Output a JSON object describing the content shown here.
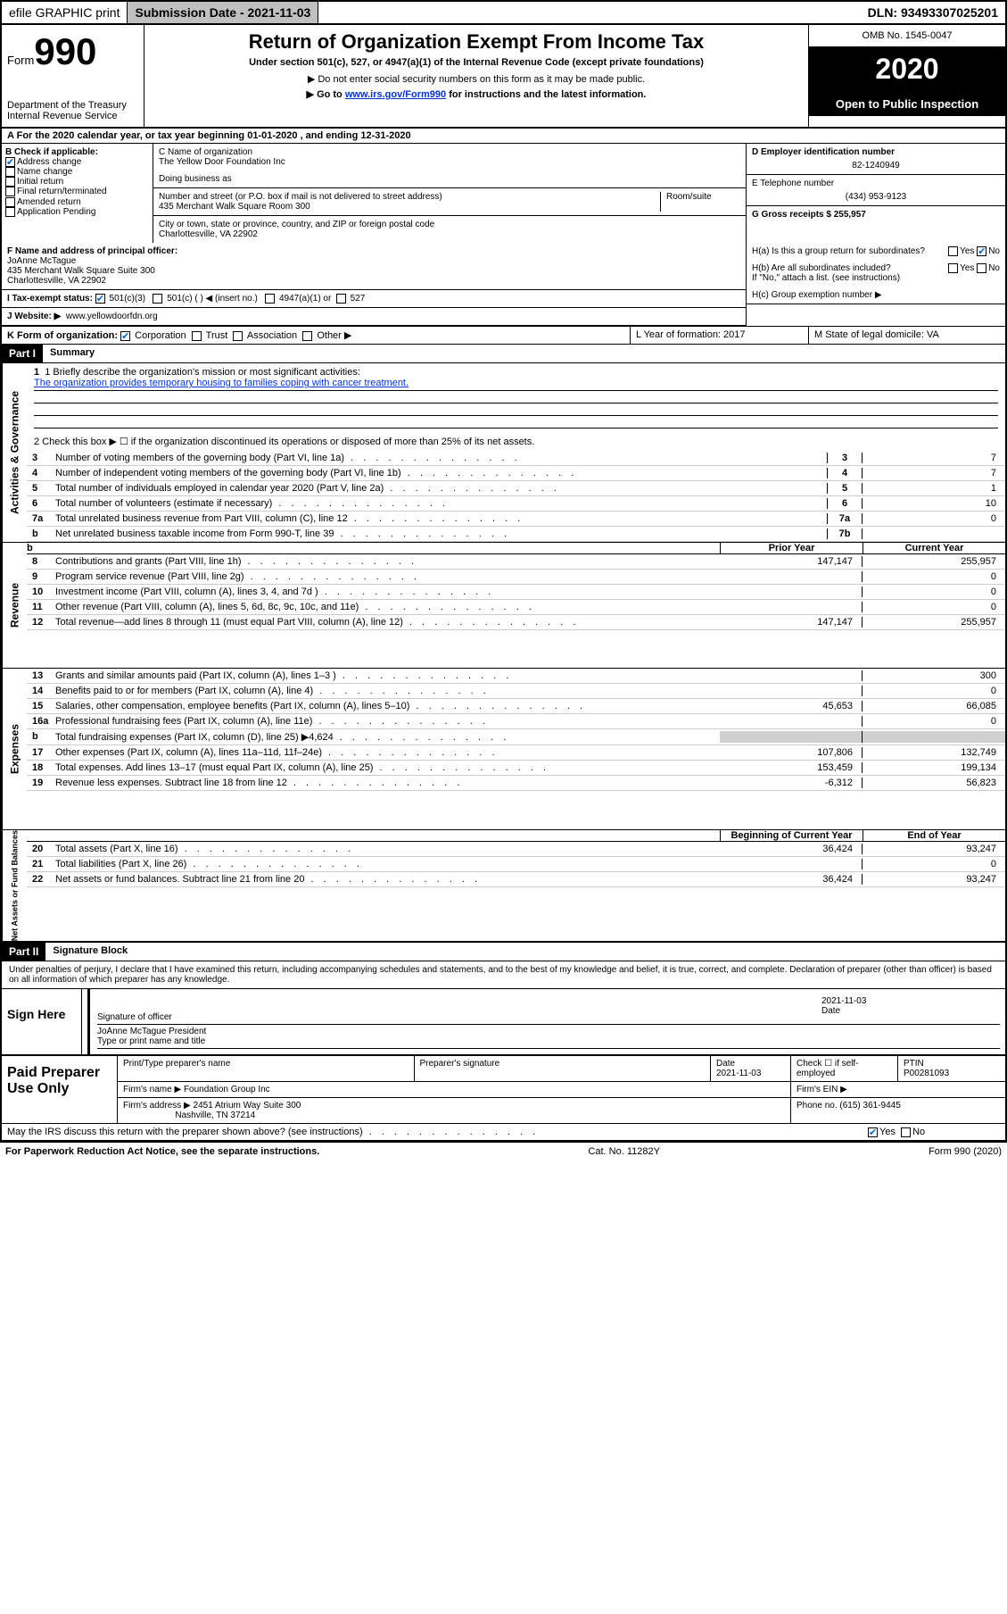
{
  "topbar": {
    "efile": "efile GRAPHIC print",
    "submission_label": "Submission Date - 2021-11-03",
    "dln_label": "DLN: 93493307025201"
  },
  "header": {
    "form_prefix": "Form",
    "form_number": "990",
    "dept": "Department of the Treasury\nInternal Revenue Service",
    "title": "Return of Organization Exempt From Income Tax",
    "subtitle": "Under section 501(c), 527, or 4947(a)(1) of the Internal Revenue Code (except private foundations)",
    "note1": "Do not enter social security numbers on this form as it may be made public.",
    "note2_prefix": "Go to ",
    "note2_link": "www.irs.gov/Form990",
    "note2_suffix": " for instructions and the latest information.",
    "omb": "OMB No. 1545-0047",
    "year": "2020",
    "inspection": "Open to Public Inspection"
  },
  "section_a": "For the 2020 calendar year, or tax year beginning 01-01-2020    , and ending 12-31-2020",
  "check_labels": {
    "b_label": "B Check if applicable:",
    "addr_change": "Address change",
    "name_change": "Name change",
    "initial": "Initial return",
    "final": "Final return/terminated",
    "amended": "Amended return",
    "app_pending": "Application Pending"
  },
  "org": {
    "c_label": "C Name of organization",
    "name": "The Yellow Door Foundation Inc",
    "dba_label": "Doing business as",
    "addr_label": "Number and street (or P.O. box if mail is not delivered to street address)",
    "room_label": "Room/suite",
    "addr": "435 Merchant Walk Square Room 300",
    "city_label": "City or town, state or province, country, and ZIP or foreign postal code",
    "city": "Charlottesville, VA  22902"
  },
  "ein": {
    "label": "D Employer identification number",
    "value": "82-1240949"
  },
  "phone": {
    "label": "E Telephone number",
    "value": "(434) 953-9123"
  },
  "gross": {
    "label": "G Gross receipts $ 255,957"
  },
  "officer": {
    "f_label": "F  Name and address of principal officer:",
    "name": "JoAnne McTague",
    "addr1": "435 Merchant Walk Square Suite 300",
    "addr2": "Charlottesville, VA  22902"
  },
  "h": {
    "a_label": "H(a)  Is this a group return for subordinates?",
    "b_label": "H(b)  Are all subordinates included?",
    "b_note": "If \"No,\" attach a list. (see instructions)",
    "c_label": "H(c)  Group exemption number ▶",
    "yes": "Yes",
    "no": "No"
  },
  "tax_exempt": {
    "i_label": "I  Tax-exempt status:",
    "c3": "501(c)(3)",
    "c": "501(c) (  ) ◀ (insert no.)",
    "a1": "4947(a)(1) or",
    "s527": "527"
  },
  "website": {
    "j_label": "J  Website: ▶",
    "value": "www.yellowdoorfdn.org"
  },
  "k": {
    "label": "K Form of organization:",
    "corp": "Corporation",
    "trust": "Trust",
    "assoc": "Association",
    "other": "Other ▶"
  },
  "l": {
    "label": "L Year of formation: 2017"
  },
  "m": {
    "label": "M State of legal domicile: VA"
  },
  "part1": {
    "label": "Part I",
    "title": "Summary",
    "line1_label": "1  Briefly describe the organization's mission or most significant activities:",
    "line1_text": "The organization provides temporary housing to families coping with cancer treatment.",
    "line2": "2    Check this box ▶ ☐  if the organization discontinued its operations or disposed of more than 25% of its net assets.",
    "lines": [
      {
        "num": "3",
        "txt": "Number of voting members of the governing body (Part VI, line 1a)",
        "ref": "3",
        "val": "7"
      },
      {
        "num": "4",
        "txt": "Number of independent voting members of the governing body (Part VI, line 1b)",
        "ref": "4",
        "val": "7"
      },
      {
        "num": "5",
        "txt": "Total number of individuals employed in calendar year 2020 (Part V, line 2a)",
        "ref": "5",
        "val": "1"
      },
      {
        "num": "6",
        "txt": "Total number of volunteers (estimate if necessary)",
        "ref": "6",
        "val": "10"
      },
      {
        "num": "7a",
        "txt": "Total unrelated business revenue from Part VIII, column (C), line 12",
        "ref": "7a",
        "val": "0"
      },
      {
        "num": "b",
        "txt": "Net unrelated business taxable income from Form 990-T, line 39",
        "ref": "7b",
        "val": ""
      }
    ]
  },
  "revenue": {
    "vert": "Revenue",
    "prior_hdr": "Prior Year",
    "current_hdr": "Current Year",
    "lines": [
      {
        "num": "8",
        "txt": "Contributions and grants (Part VIII, line 1h)",
        "prior": "147,147",
        "curr": "255,957"
      },
      {
        "num": "9",
        "txt": "Program service revenue (Part VIII, line 2g)",
        "prior": "",
        "curr": "0"
      },
      {
        "num": "10",
        "txt": "Investment income (Part VIII, column (A), lines 3, 4, and 7d )",
        "prior": "",
        "curr": "0"
      },
      {
        "num": "11",
        "txt": "Other revenue (Part VIII, column (A), lines 5, 6d, 8c, 9c, 10c, and 11e)",
        "prior": "",
        "curr": "0"
      },
      {
        "num": "12",
        "txt": "Total revenue—add lines 8 through 11 (must equal Part VIII, column (A), line 12)",
        "prior": "147,147",
        "curr": "255,957"
      }
    ]
  },
  "expenses": {
    "vert": "Expenses",
    "lines": [
      {
        "num": "13",
        "txt": "Grants and similar amounts paid (Part IX, column (A), lines 1–3 )",
        "prior": "",
        "curr": "300"
      },
      {
        "num": "14",
        "txt": "Benefits paid to or for members (Part IX, column (A), line 4)",
        "prior": "",
        "curr": "0"
      },
      {
        "num": "15",
        "txt": "Salaries, other compensation, employee benefits (Part IX, column (A), lines 5–10)",
        "prior": "45,653",
        "curr": "66,085"
      },
      {
        "num": "16a",
        "txt": "Professional fundraising fees (Part IX, column (A), line 11e)",
        "prior": "",
        "curr": "0"
      },
      {
        "num": "b",
        "txt": "Total fundraising expenses (Part IX, column (D), line 25) ▶4,624",
        "prior": "SHADE",
        "curr": "SHADE"
      },
      {
        "num": "17",
        "txt": "Other expenses (Part IX, column (A), lines 11a–11d, 11f–24e)",
        "prior": "107,806",
        "curr": "132,749"
      },
      {
        "num": "18",
        "txt": "Total expenses. Add lines 13–17 (must equal Part IX, column (A), line 25)",
        "prior": "153,459",
        "curr": "199,134"
      },
      {
        "num": "19",
        "txt": "Revenue less expenses. Subtract line 18 from line 12",
        "prior": "-6,312",
        "curr": "56,823"
      }
    ]
  },
  "netassets": {
    "vert": "Net Assets or Fund Balances",
    "begin_hdr": "Beginning of Current Year",
    "end_hdr": "End of Year",
    "lines": [
      {
        "num": "20",
        "txt": "Total assets (Part X, line 16)",
        "prior": "36,424",
        "curr": "93,247"
      },
      {
        "num": "21",
        "txt": "Total liabilities (Part X, line 26)",
        "prior": "",
        "curr": "0"
      },
      {
        "num": "22",
        "txt": "Net assets or fund balances. Subtract line 21 from line 20",
        "prior": "36,424",
        "curr": "93,247"
      }
    ]
  },
  "governance_vert": "Activities & Governance",
  "part2": {
    "label": "Part II",
    "title": "Signature Block",
    "declaration": "Under penalties of perjury, I declare that I have examined this return, including accompanying schedules and statements, and to the best of my knowledge and belief, it is true, correct, and complete. Declaration of preparer (other than officer) is based on all information of which preparer has any knowledge."
  },
  "sign": {
    "label": "Sign Here",
    "sig_officer": "Signature of officer",
    "date_label": "Date",
    "date": "2021-11-03",
    "name": "JoAnne McTague President",
    "type_label": "Type or print name and title"
  },
  "preparer": {
    "label": "Paid Preparer Use Only",
    "print_label": "Print/Type preparer's name",
    "sig_label": "Preparer's signature",
    "date_label": "Date",
    "date": "2021-11-03",
    "check_label": "Check ☐ if self-employed",
    "ptin_label": "PTIN",
    "ptin": "P00281093",
    "firm_label": "Firm's name   ▶",
    "firm": "Foundation Group Inc",
    "ein_label": "Firm's EIN ▶",
    "addr_label": "Firm's address ▶",
    "addr1": "2451 Atrium Way Suite 300",
    "addr2": "Nashville, TN  37214",
    "phone_label": "Phone no.",
    "phone": "(615) 361-9445"
  },
  "irs_discuss": "May the IRS discuss this return with the preparer shown above? (see instructions)",
  "footer": {
    "left": "For Paperwork Reduction Act Notice, see the separate instructions.",
    "center": "Cat. No. 11282Y",
    "right": "Form 990 (2020)"
  }
}
